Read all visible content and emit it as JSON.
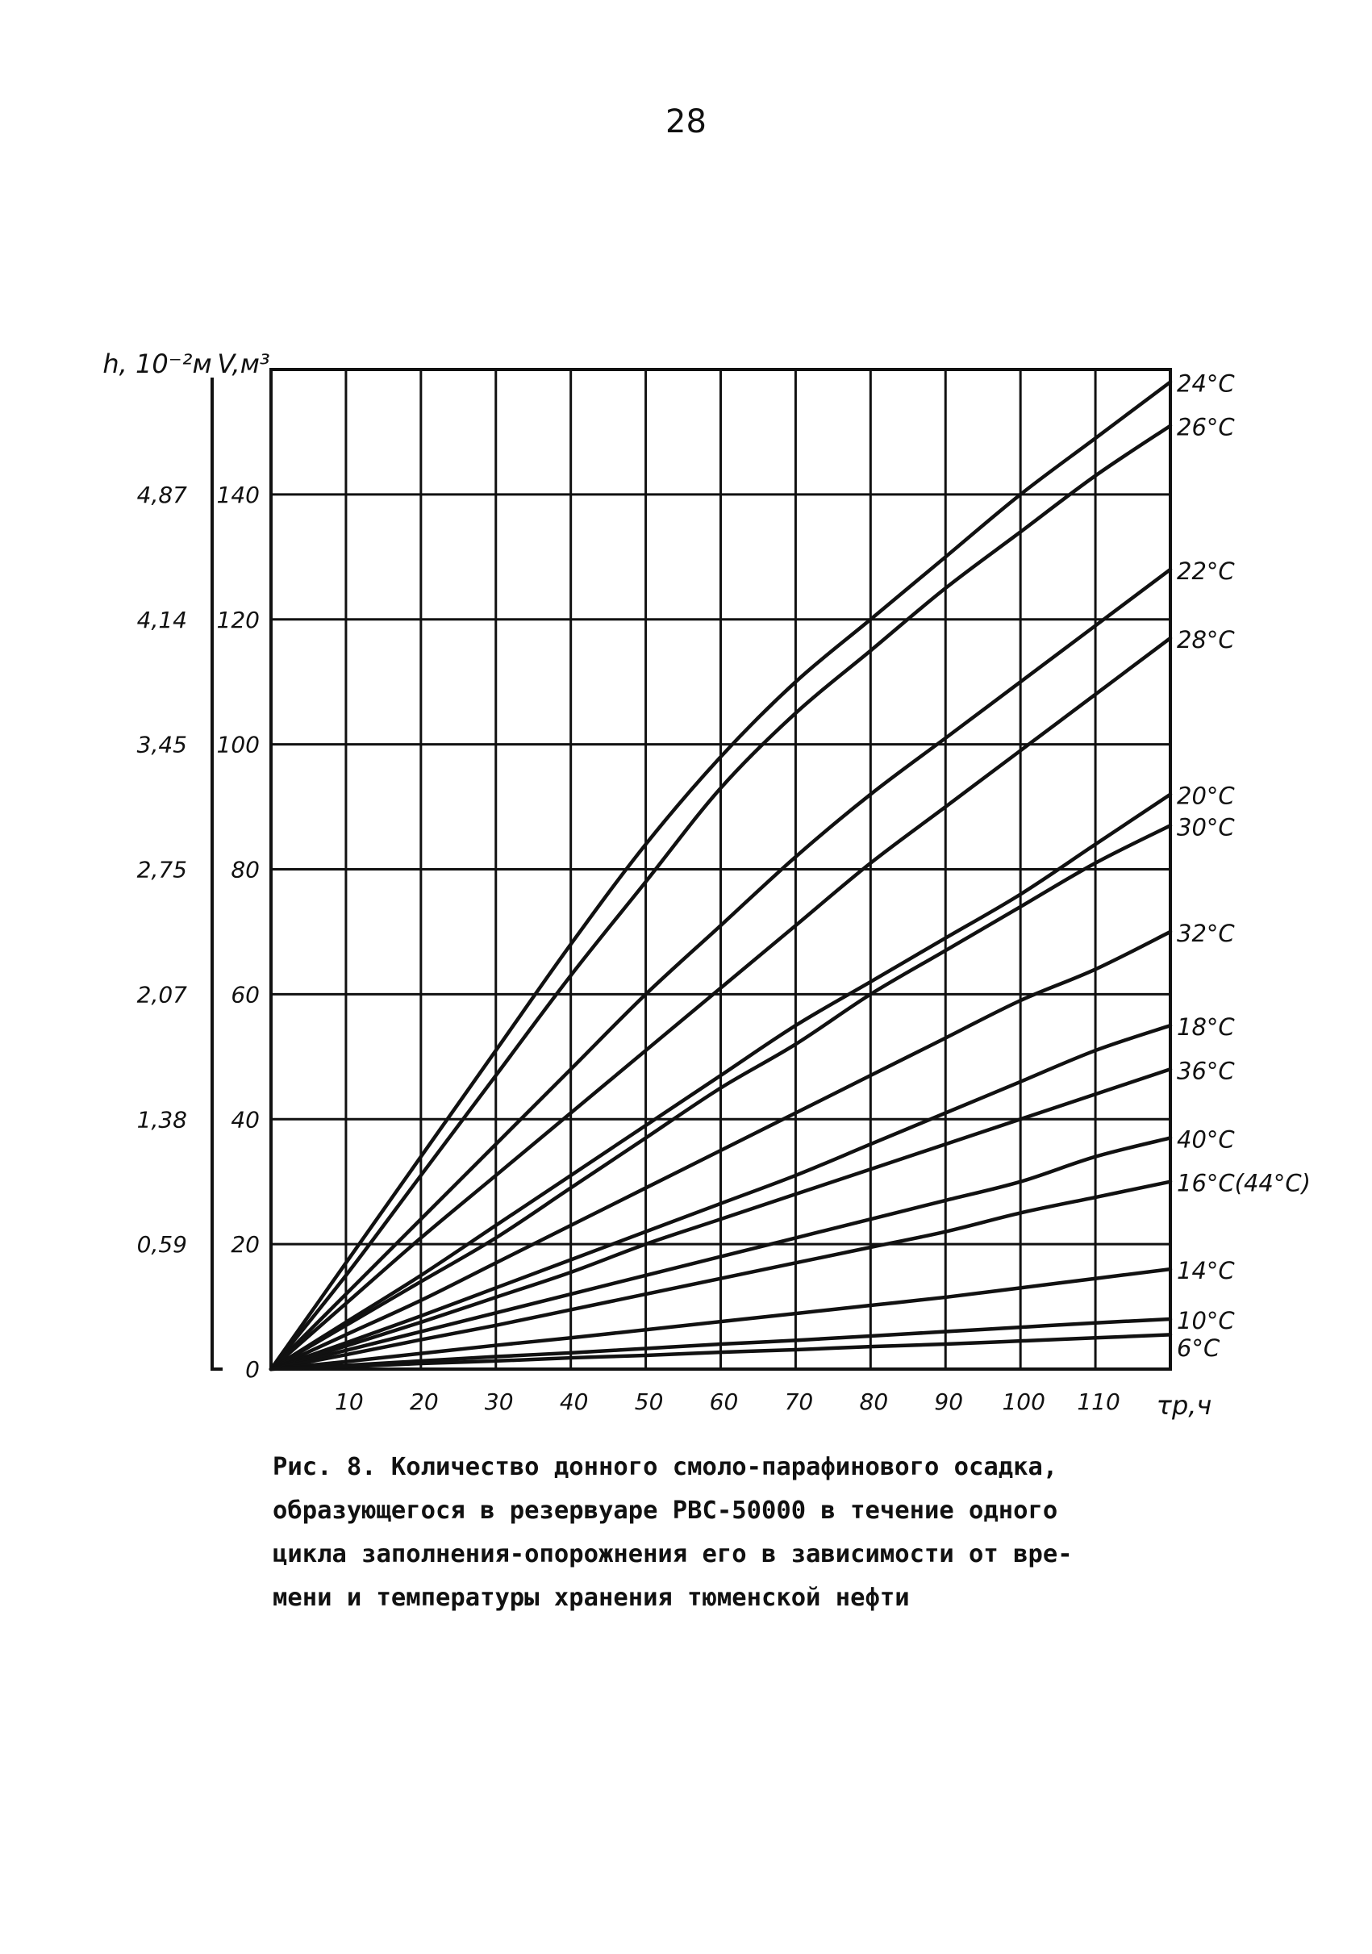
{
  "page": {
    "number": "28"
  },
  "chart_data": {
    "type": "line",
    "title": "",
    "xlabel": "τр,ч",
    "ylabel": "V,м³",
    "y2label": "h, 10⁻²м",
    "xlim": [
      0,
      120
    ],
    "ylim": [
      0,
      160
    ],
    "grid": true,
    "x_ticks": [
      10,
      20,
      30,
      40,
      50,
      60,
      70,
      80,
      90,
      100,
      110
    ],
    "x_tick_labels": [
      "10",
      "20",
      "30",
      "40",
      "50",
      "60",
      "70",
      "80",
      "90",
      "100",
      "110"
    ],
    "y_ticks": [
      0,
      20,
      40,
      60,
      80,
      100,
      120,
      140
    ],
    "y_tick_labels": [
      "0",
      "20",
      "40",
      "60",
      "80",
      "100",
      "120",
      "140"
    ],
    "y2_ticks": [
      20,
      40,
      60,
      80,
      100,
      120,
      140
    ],
    "y2_tick_labels": [
      "0,59",
      "1,38",
      "2,07",
      "2,75",
      "3,45",
      "4,14",
      "4,87"
    ],
    "x": [
      0,
      10,
      20,
      30,
      40,
      50,
      60,
      70,
      80,
      90,
      100,
      110,
      120
    ],
    "series": [
      {
        "name": "24°С",
        "values": [
          0,
          17,
          34,
          51,
          68,
          84,
          98,
          110,
          120,
          130,
          140,
          149,
          158
        ]
      },
      {
        "name": "26°С",
        "values": [
          0,
          15,
          31,
          47,
          63,
          78,
          93,
          105,
          115,
          125,
          134,
          143,
          151
        ]
      },
      {
        "name": "22°С",
        "values": [
          0,
          12,
          24,
          36,
          48,
          60,
          71,
          82,
          92,
          101,
          110,
          119,
          128
        ]
      },
      {
        "name": "28°С",
        "values": [
          0,
          10.5,
          21,
          31,
          41,
          51,
          61,
          71,
          81,
          90,
          99,
          108,
          117
        ]
      },
      {
        "name": "20°С",
        "values": [
          0,
          7.5,
          15,
          23,
          31,
          39,
          47,
          55,
          62,
          69,
          76,
          84,
          92
        ]
      },
      {
        "name": "30°С",
        "values": [
          0,
          7,
          14,
          21,
          29,
          37,
          45,
          52,
          60,
          67,
          74,
          81,
          87
        ]
      },
      {
        "name": "32°С",
        "values": [
          0,
          5.5,
          11,
          17,
          23,
          29,
          35,
          41,
          47,
          53,
          59,
          64,
          70
        ]
      },
      {
        "name": "18°С",
        "values": [
          0,
          4.2,
          8.5,
          13,
          17.5,
          22,
          26.5,
          31,
          36,
          41,
          46,
          51,
          55
        ]
      },
      {
        "name": "36°С",
        "values": [
          0,
          3.7,
          7.5,
          11.5,
          15.5,
          20,
          24,
          28,
          32,
          36,
          40,
          44,
          48
        ]
      },
      {
        "name": "40°С",
        "values": [
          0,
          3,
          6,
          9,
          12,
          15,
          18,
          21,
          24,
          27,
          30,
          34,
          37
        ]
      },
      {
        "name": "16°С(44°С)",
        "values": [
          0,
          2.3,
          4.7,
          7,
          9.5,
          12,
          14.5,
          17,
          19.5,
          22,
          25,
          27.5,
          30
        ]
      },
      {
        "name": "14°С",
        "values": [
          0,
          1.2,
          2.5,
          3.8,
          5,
          6.3,
          7.6,
          8.9,
          10.2,
          11.5,
          13,
          14.5,
          16
        ]
      },
      {
        "name": "10°С",
        "values": [
          0,
          0.6,
          1.3,
          2,
          2.6,
          3.3,
          4,
          4.6,
          5.3,
          6,
          6.7,
          7.4,
          8
        ]
      },
      {
        "name": "6°С",
        "values": [
          0,
          0.4,
          0.9,
          1.3,
          1.8,
          2.2,
          2.7,
          3.1,
          3.6,
          4,
          4.5,
          5,
          5.5
        ]
      }
    ]
  },
  "caption": {
    "lines": [
      "Рис. 8. Количество донного смоло-парафинового осадка,",
      "образующегося в резервуаре РВС-50000 в течение одного",
      "цикла заполнения-опорожнения его в зависимости от вре-",
      "мени и температуры хранения тюменской нефти"
    ]
  }
}
